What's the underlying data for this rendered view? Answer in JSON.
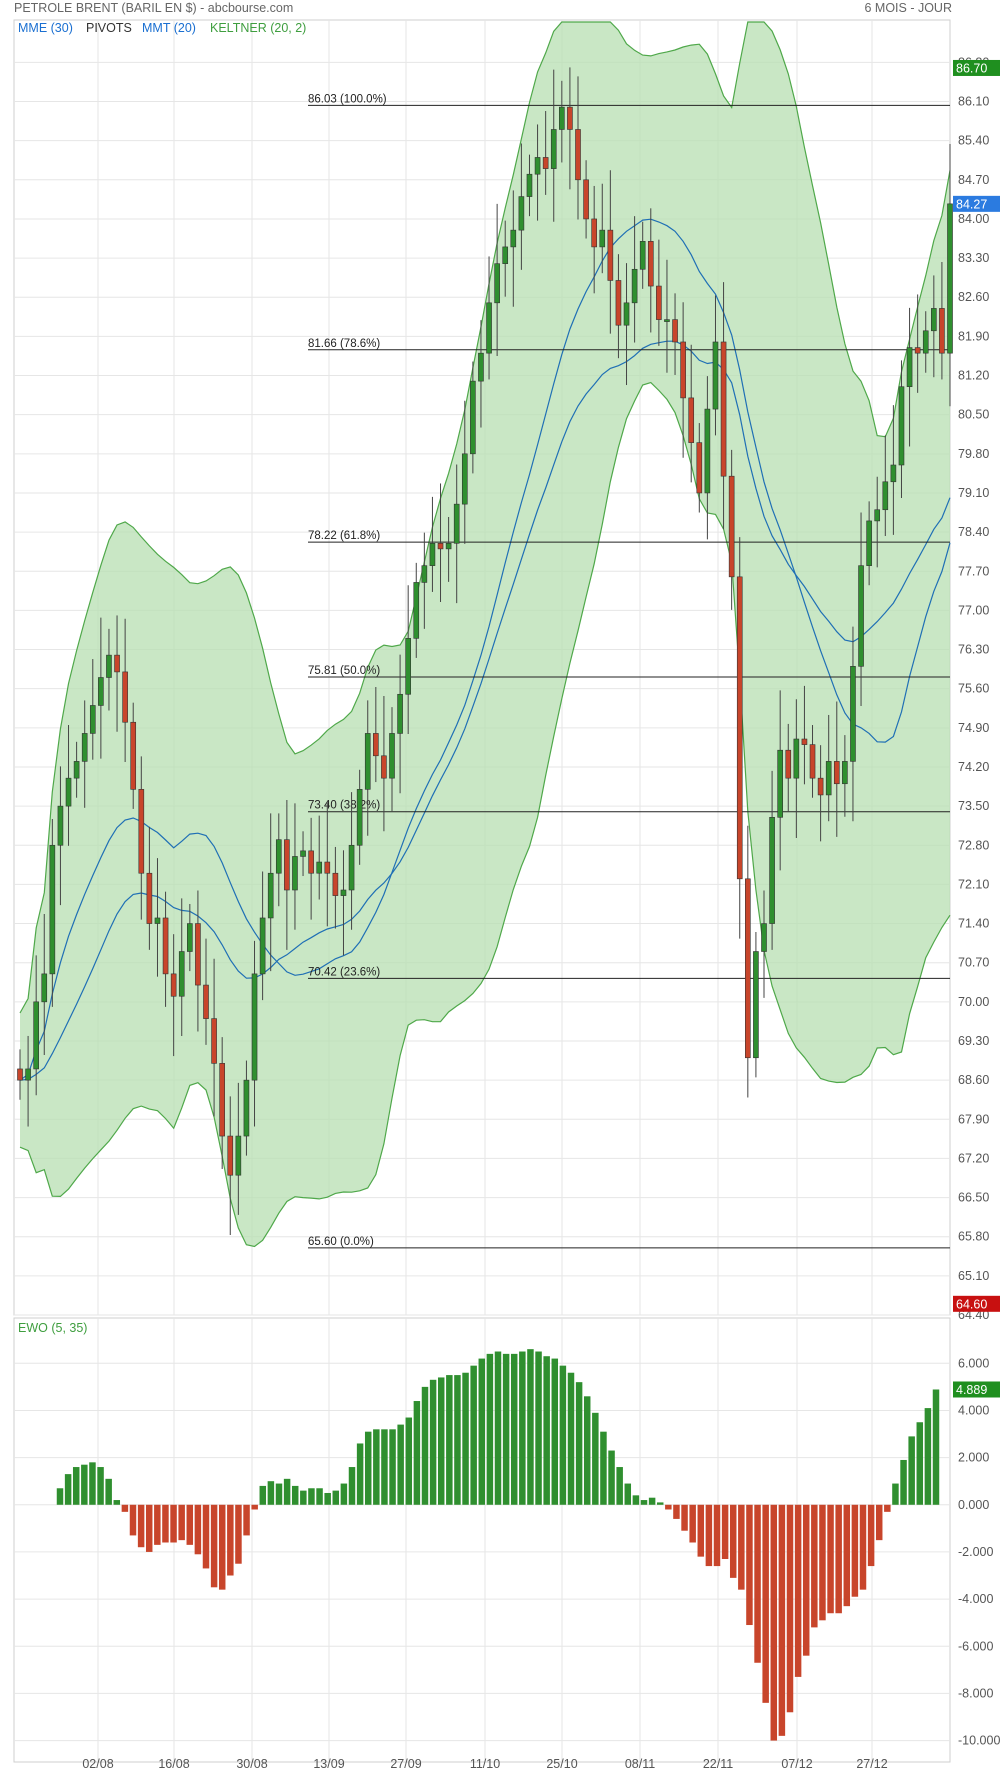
{
  "header": {
    "title": "PETROLE BRENT (BARIL EN $) - abcbourse.com",
    "period": "6 MOIS - JOUR"
  },
  "legend": [
    {
      "label": "MME (30)",
      "color": "#1a6fd1"
    },
    {
      "label": "PIVOTS",
      "color": "#333333"
    },
    {
      "label": "MMT (20)",
      "color": "#1a6fd1"
    },
    {
      "label": "KELTNER (20, 2)",
      "color": "#3f9e3f"
    }
  ],
  "colors": {
    "up": "#2f8f2f",
    "down": "#c8452b",
    "band_fill": "#b7dfb2",
    "band_line": "#4fa84a",
    "ma": "#1f6fb5",
    "grid": "#e6e6e6",
    "last_tag": "#2b7be0",
    "high_tag": "#1f8f1f",
    "low_tag": "#c81010"
  },
  "chart_data": [
    {
      "type": "candlestick",
      "title": "",
      "x_ticks": [
        "02/08",
        "16/08",
        "30/08",
        "13/09",
        "27/09",
        "11/10",
        "25/10",
        "08/11",
        "22/11",
        "07/12",
        "27/12"
      ],
      "y_ticks": [
        "86.80",
        "86.10",
        "85.40",
        "84.70",
        "84.00",
        "83.30",
        "82.60",
        "81.90",
        "81.20",
        "80.50",
        "79.80",
        "79.10",
        "78.40",
        "77.70",
        "77.00",
        "76.30",
        "75.60",
        "74.90",
        "74.20",
        "73.50",
        "72.80",
        "72.10",
        "71.40",
        "70.70",
        "70.00",
        "69.30",
        "68.60",
        "67.90",
        "67.20",
        "66.50",
        "65.80",
        "65.10",
        "64.40"
      ],
      "ylim": [
        64.4,
        87.2
      ],
      "price_tags": [
        {
          "label": "86.70",
          "value": 86.7,
          "kind": "high"
        },
        {
          "label": "84.27",
          "value": 84.27,
          "kind": "last"
        },
        {
          "label": "64.60",
          "value": 64.6,
          "kind": "low"
        }
      ],
      "fibonacci_levels": [
        {
          "label": "86.03  (100.0%)",
          "value": 86.03
        },
        {
          "label": "81.66  (78.6%)",
          "value": 81.66
        },
        {
          "label": "78.22  (61.8%)",
          "value": 78.22
        },
        {
          "label": "75.81  (50.0%)",
          "value": 75.81
        },
        {
          "label": "73.40  (38.2%)",
          "value": 73.4
        },
        {
          "label": "70.42  (23.6%)",
          "value": 70.42
        },
        {
          "label": "65.60  (0.0%)",
          "value": 65.6
        }
      ],
      "close": [
        68.6,
        68.8,
        70.0,
        70.5,
        72.8,
        73.5,
        74.0,
        74.3,
        74.8,
        75.3,
        75.8,
        76.2,
        75.9,
        75.0,
        73.8,
        72.3,
        71.4,
        71.5,
        70.5,
        70.1,
        70.9,
        71.4,
        70.3,
        69.7,
        68.9,
        67.6,
        66.9,
        67.6,
        68.6,
        70.5,
        71.5,
        72.3,
        72.9,
        72.0,
        72.6,
        72.7,
        72.3,
        72.5,
        72.3,
        71.9,
        72.0,
        72.8,
        73.8,
        74.8,
        74.4,
        74.0,
        74.8,
        75.5,
        76.5,
        77.5,
        77.8,
        78.2,
        78.1,
        78.2,
        78.9,
        79.8,
        81.1,
        81.6,
        82.5,
        83.2,
        83.5,
        83.8,
        84.4,
        84.8,
        85.1,
        84.9,
        85.6,
        86.0,
        85.6,
        84.7,
        84.0,
        83.5,
        83.8,
        82.9,
        82.1,
        82.5,
        83.1,
        83.6,
        82.8,
        82.2,
        82.2,
        81.8,
        80.8,
        80.0,
        79.1,
        80.6,
        81.8,
        79.4,
        77.6,
        72.2,
        69.0,
        70.9,
        71.4,
        73.3,
        74.5,
        74.0,
        74.7,
        74.6,
        74.0,
        73.7,
        74.3,
        73.9,
        74.3,
        76.0,
        77.8,
        78.6,
        78.8,
        79.3,
        79.6,
        81.0,
        81.7,
        81.6,
        82.0,
        82.4,
        81.6,
        84.27
      ],
      "indicator": {
        "label": "EWO (5, 35)",
        "last_tag": "4.889",
        "y_ticks": [
          "6.000",
          "4.000",
          "2.000",
          "0.000",
          "-2.000",
          "-4.000",
          "-6.000",
          "-8.000",
          "-10.000"
        ],
        "ylim": [
          -10.4,
          7.2
        ],
        "values": [
          0.7,
          1.3,
          1.6,
          1.7,
          1.8,
          1.6,
          1.1,
          0.2,
          -0.3,
          -1.3,
          -1.8,
          -2.0,
          -1.7,
          -1.6,
          -1.6,
          -1.5,
          -1.7,
          -2.1,
          -2.7,
          -3.5,
          -3.6,
          -3.0,
          -2.5,
          -1.3,
          -0.2,
          0.8,
          1.0,
          0.9,
          1.1,
          0.8,
          0.6,
          0.7,
          0.7,
          0.5,
          0.6,
          0.9,
          1.6,
          2.6,
          3.1,
          3.2,
          3.2,
          3.2,
          3.4,
          3.7,
          4.4,
          5.0,
          5.3,
          5.4,
          5.5,
          5.5,
          5.6,
          5.9,
          6.2,
          6.4,
          6.5,
          6.4,
          6.4,
          6.5,
          6.6,
          6.5,
          6.3,
          6.2,
          5.9,
          5.6,
          5.2,
          4.6,
          3.9,
          3.1,
          2.3,
          1.6,
          0.9,
          0.4,
          0.2,
          0.3,
          0.1,
          -0.2,
          -0.6,
          -1.1,
          -1.6,
          -2.2,
          -2.6,
          -2.6,
          -2.3,
          -3.1,
          -3.6,
          -5.1,
          -6.7,
          -8.4,
          -10.0,
          -9.8,
          -8.8,
          -7.3,
          -6.4,
          -5.2,
          -4.9,
          -4.6,
          -4.6,
          -4.3,
          -3.9,
          -3.6,
          -2.6,
          -1.5,
          -0.3,
          0.9,
          1.9,
          2.9,
          3.5,
          4.1,
          4.889
        ]
      }
    }
  ]
}
